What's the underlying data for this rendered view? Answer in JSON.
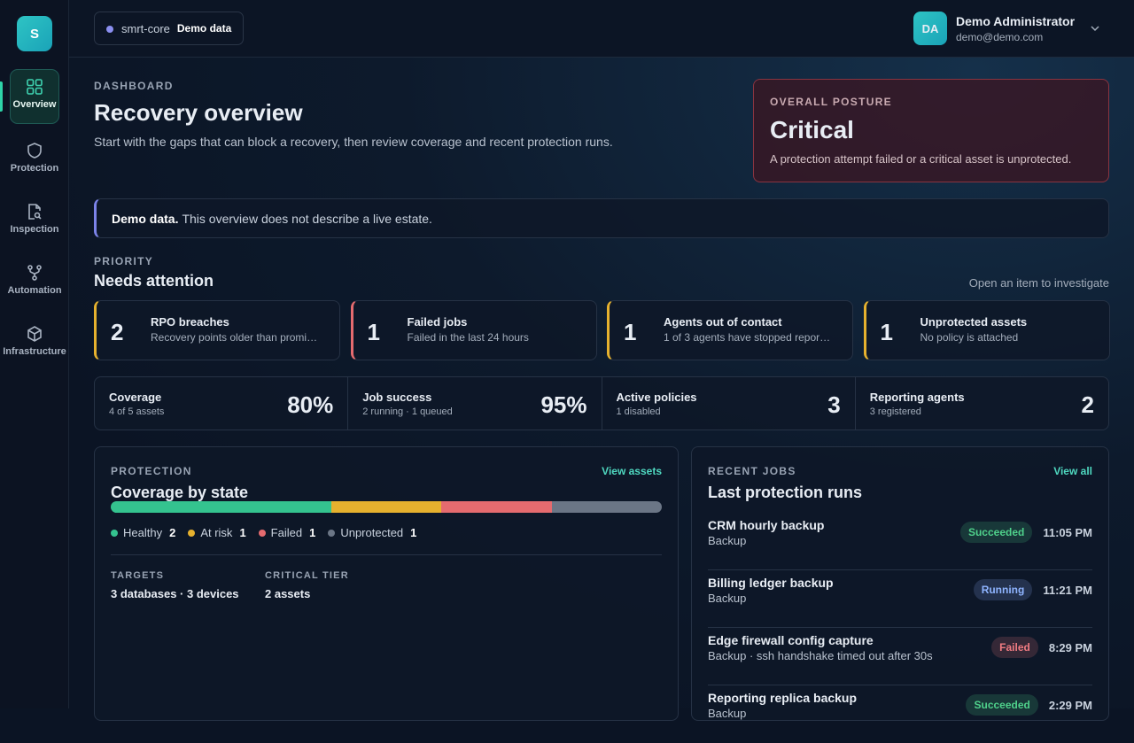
{
  "sidebar": {
    "logo": "S",
    "nav": [
      {
        "label": "Overview"
      },
      {
        "label": "Protection"
      },
      {
        "label": "Inspection"
      },
      {
        "label": "Automation"
      },
      {
        "label": "Infrastructure"
      }
    ]
  },
  "topbar": {
    "workspace": "smrt-core",
    "badge": "Demo data",
    "user": {
      "initials": "DA",
      "name": "Demo Administrator",
      "email": "demo@demo.com"
    }
  },
  "header": {
    "eyebrow": "DASHBOARD",
    "title": "Recovery overview",
    "subtitle": "Start with the gaps that can block a recovery, then review coverage and recent protection runs."
  },
  "posture": {
    "eyebrow": "OVERALL POSTURE",
    "status": "Critical",
    "description": "A protection attempt failed or a critical asset is unprotected."
  },
  "notice": {
    "strong": "Demo data.",
    "text": "This overview does not describe a live estate."
  },
  "priority": {
    "eyebrow": "PRIORITY",
    "title": "Needs attention",
    "hint": "Open an item to investigate",
    "items": [
      {
        "count": 2,
        "title": "RPO breaches",
        "detail": "Recovery points older than promi…",
        "color": "#e6b12e"
      },
      {
        "count": 1,
        "title": "Failed jobs",
        "detail": "Failed in the last 24 hours",
        "color": "#e56b6f"
      },
      {
        "count": 1,
        "title": "Agents out of contact",
        "detail": "1 of 3 agents have stopped repor…",
        "color": "#e6b12e"
      },
      {
        "count": 1,
        "title": "Unprotected assets",
        "detail": "No policy is attached",
        "color": "#e6b12e"
      }
    ]
  },
  "stats": [
    {
      "label": "Coverage",
      "detail": "4 of 5 assets",
      "value": "80%"
    },
    {
      "label": "Job success",
      "detail": "2 running · 1 queued",
      "value": "95%"
    },
    {
      "label": "Active policies",
      "detail": "1 disabled",
      "value": "3"
    },
    {
      "label": "Reporting agents",
      "detail": "3 registered",
      "value": "2"
    }
  ],
  "protection": {
    "eyebrow": "PROTECTION",
    "title": "Coverage by state",
    "link": "View assets",
    "states": [
      {
        "name": "Healthy",
        "count": 2,
        "color": "#34c38f"
      },
      {
        "name": "At risk",
        "count": 1,
        "color": "#e6b12e"
      },
      {
        "name": "Failed",
        "count": 1,
        "color": "#e56b6f"
      },
      {
        "name": "Unprotected",
        "count": 1,
        "color": "#6b7686"
      }
    ],
    "facts": [
      {
        "label": "TARGETS",
        "value": "3 databases · 3 devices"
      },
      {
        "label": "CRITICAL TIER",
        "value": "2 assets"
      }
    ]
  },
  "jobs": {
    "eyebrow": "RECENT JOBS",
    "title": "Last protection runs",
    "link": "View all",
    "rows": [
      {
        "name": "CRM hourly backup",
        "detail": "Backup",
        "status": "Succeeded",
        "time": "11:05 PM",
        "color": "#4fd18b"
      },
      {
        "name": "Billing ledger backup",
        "detail": "Backup",
        "status": "Running",
        "time": "11:21 PM",
        "color": "#8fb4ff"
      },
      {
        "name": "Edge firewall config capture",
        "detail": "Backup · ssh handshake timed out after 30s",
        "status": "Failed",
        "time": "8:29 PM",
        "color": "#f07b82"
      },
      {
        "name": "Reporting replica backup",
        "detail": "Backup",
        "status": "Succeeded",
        "time": "2:29 PM",
        "color": "#4fd18b"
      }
    ]
  }
}
